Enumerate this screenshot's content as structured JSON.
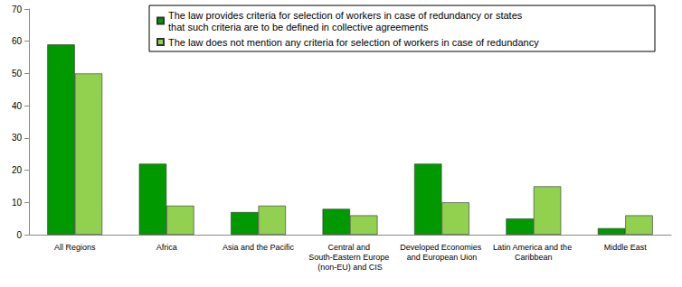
{
  "chart_data": {
    "type": "bar",
    "categories": [
      "All Regions",
      "Africa",
      "Asia and the Pacific",
      "Central and South-Eastern Europe (non-EU) and CIS",
      "Developed Economies and European Uion",
      "Latin America and the Caribbean",
      "Middle East"
    ],
    "series": [
      {
        "name": "The law provides criteria for selection of workers in case of redundancy or states that such criteria are to be defined in collective agreements",
        "color": "#009a00",
        "values": [
          59,
          22,
          7,
          8,
          22,
          5,
          2
        ]
      },
      {
        "name": "The law does not mention any criteria for selection of workers in case of redundancy",
        "color": "#92d050",
        "values": [
          50,
          9,
          9,
          6,
          10,
          15,
          6
        ]
      }
    ],
    "ylim": [
      0,
      70
    ],
    "yticks": [
      0,
      10,
      20,
      30,
      40,
      50,
      60,
      70
    ],
    "grid": false,
    "legend": "top"
  }
}
